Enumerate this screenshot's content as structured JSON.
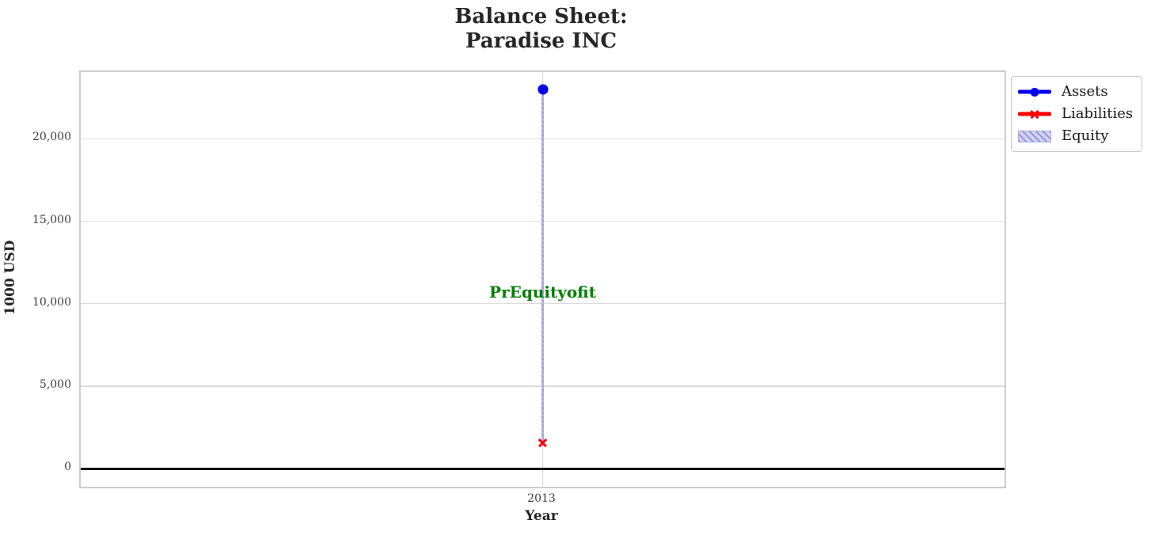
{
  "chart_data": {
    "type": "scatter",
    "title": "Balance Sheet:\nParadise INC",
    "xlabel": "Year",
    "ylabel": "1000 USD",
    "categories": [
      "2013"
    ],
    "series": [
      {
        "name": "Assets",
        "kind": "line-marker",
        "marker": "circle",
        "color": "#0000ee",
        "values": [
          23000
        ]
      },
      {
        "name": "Liabilities",
        "kind": "line-marker",
        "marker": "x",
        "color": "#ff0000",
        "values": [
          1550
        ]
      },
      {
        "name": "Equity",
        "kind": "bar",
        "hatch": "///",
        "color": "#b6b6e6",
        "values": [
          21450
        ],
        "bar_bottom": 1550,
        "bar_top": 23000
      }
    ],
    "annotation": {
      "text": "PrEquityofit",
      "x": "2013",
      "y": 10700,
      "color": "#008000"
    },
    "ylim": [
      -1100,
      24050
    ],
    "yticks": [
      0,
      5000,
      10000,
      15000,
      20000
    ],
    "ytick_labels": [
      "0",
      "5,000",
      "10,000",
      "15,000",
      "20,000"
    ],
    "xtick_labels": [
      "2013"
    ],
    "grid": true,
    "zero_line": true,
    "zero_line_color": "#000000",
    "legend_position": "outside-upper-right",
    "legend_entries": [
      "Assets",
      "Liabilities",
      "Equity"
    ]
  }
}
